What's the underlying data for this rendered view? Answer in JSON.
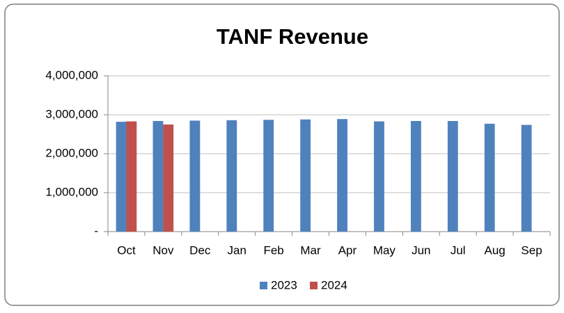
{
  "chart_data": {
    "type": "bar",
    "title": "TANF Revenue",
    "categories": [
      "Oct",
      "Nov",
      "Dec",
      "Jan",
      "Feb",
      "Mar",
      "Apr",
      "May",
      "Jun",
      "Jul",
      "Aug",
      "Sep"
    ],
    "series": [
      {
        "name": "2023",
        "color": "#4f81bd",
        "values": [
          2820000,
          2840000,
          2850000,
          2860000,
          2870000,
          2880000,
          2890000,
          2830000,
          2840000,
          2840000,
          2770000,
          2740000
        ]
      },
      {
        "name": "2024",
        "color": "#c0504d",
        "values": [
          2830000,
          2750000,
          null,
          null,
          null,
          null,
          null,
          null,
          null,
          null,
          null,
          null
        ]
      }
    ],
    "ylim": [
      0,
      4000000
    ],
    "yticks": [
      {
        "value": 0,
        "label": "-"
      },
      {
        "value": 1000000,
        "label": "1,000,000"
      },
      {
        "value": 2000000,
        "label": "2,000,000"
      },
      {
        "value": 3000000,
        "label": "3,000,000"
      },
      {
        "value": 4000000,
        "label": "4,000,000"
      }
    ],
    "grid": true,
    "legend": "bottom"
  }
}
